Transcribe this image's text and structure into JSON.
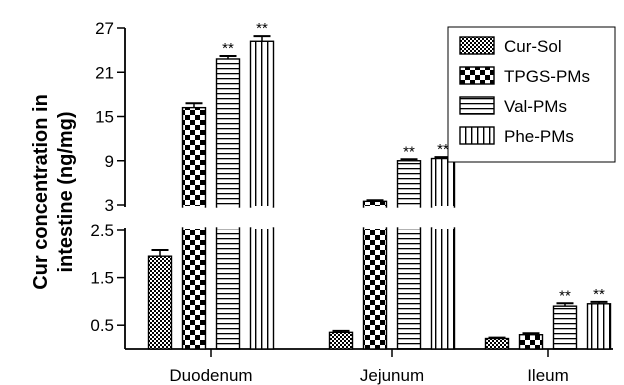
{
  "chart_data": {
    "type": "bar",
    "title": "",
    "xlabel": "",
    "ylabel": [
      "Cur concentration in",
      "intestine (ng/mg)"
    ],
    "categories": [
      "Duodenum",
      "Jejunum",
      "Ileum"
    ],
    "axis_break": true,
    "upper_ylim": [
      3,
      27
    ],
    "upper_ticks": [
      "3",
      "9",
      "15",
      "21",
      "27"
    ],
    "lower_ylim": [
      0,
      2.5
    ],
    "lower_ticks": [
      "0.5",
      "1.5",
      "2.5"
    ],
    "legend_position": "top-right",
    "series": [
      {
        "name": "Cur-Sol",
        "pattern": "checker",
        "values": [
          1.95,
          0.35,
          0.22
        ],
        "errors": [
          0.13,
          0.03,
          0.02
        ],
        "sig": [
          "",
          "",
          ""
        ]
      },
      {
        "name": "TPGS-PMs",
        "pattern": "bigchecker",
        "values": [
          16.2,
          3.5,
          0.3
        ],
        "errors": [
          0.6,
          0.15,
          0.03
        ],
        "sig": [
          "",
          "",
          ""
        ]
      },
      {
        "name": "Val-PMs",
        "pattern": "hlines",
        "values": [
          22.8,
          9.0,
          0.9
        ],
        "errors": [
          0.4,
          0.2,
          0.06
        ],
        "sig": [
          "**",
          "**",
          "**"
        ]
      },
      {
        "name": "Phe-PMs",
        "pattern": "vlines",
        "values": [
          25.2,
          9.3,
          0.95
        ],
        "errors": [
          0.7,
          0.2,
          0.04
        ],
        "sig": [
          "**",
          "**",
          "**"
        ]
      }
    ],
    "colors": {
      "ink": "#000000",
      "background": "#ffffff"
    }
  }
}
